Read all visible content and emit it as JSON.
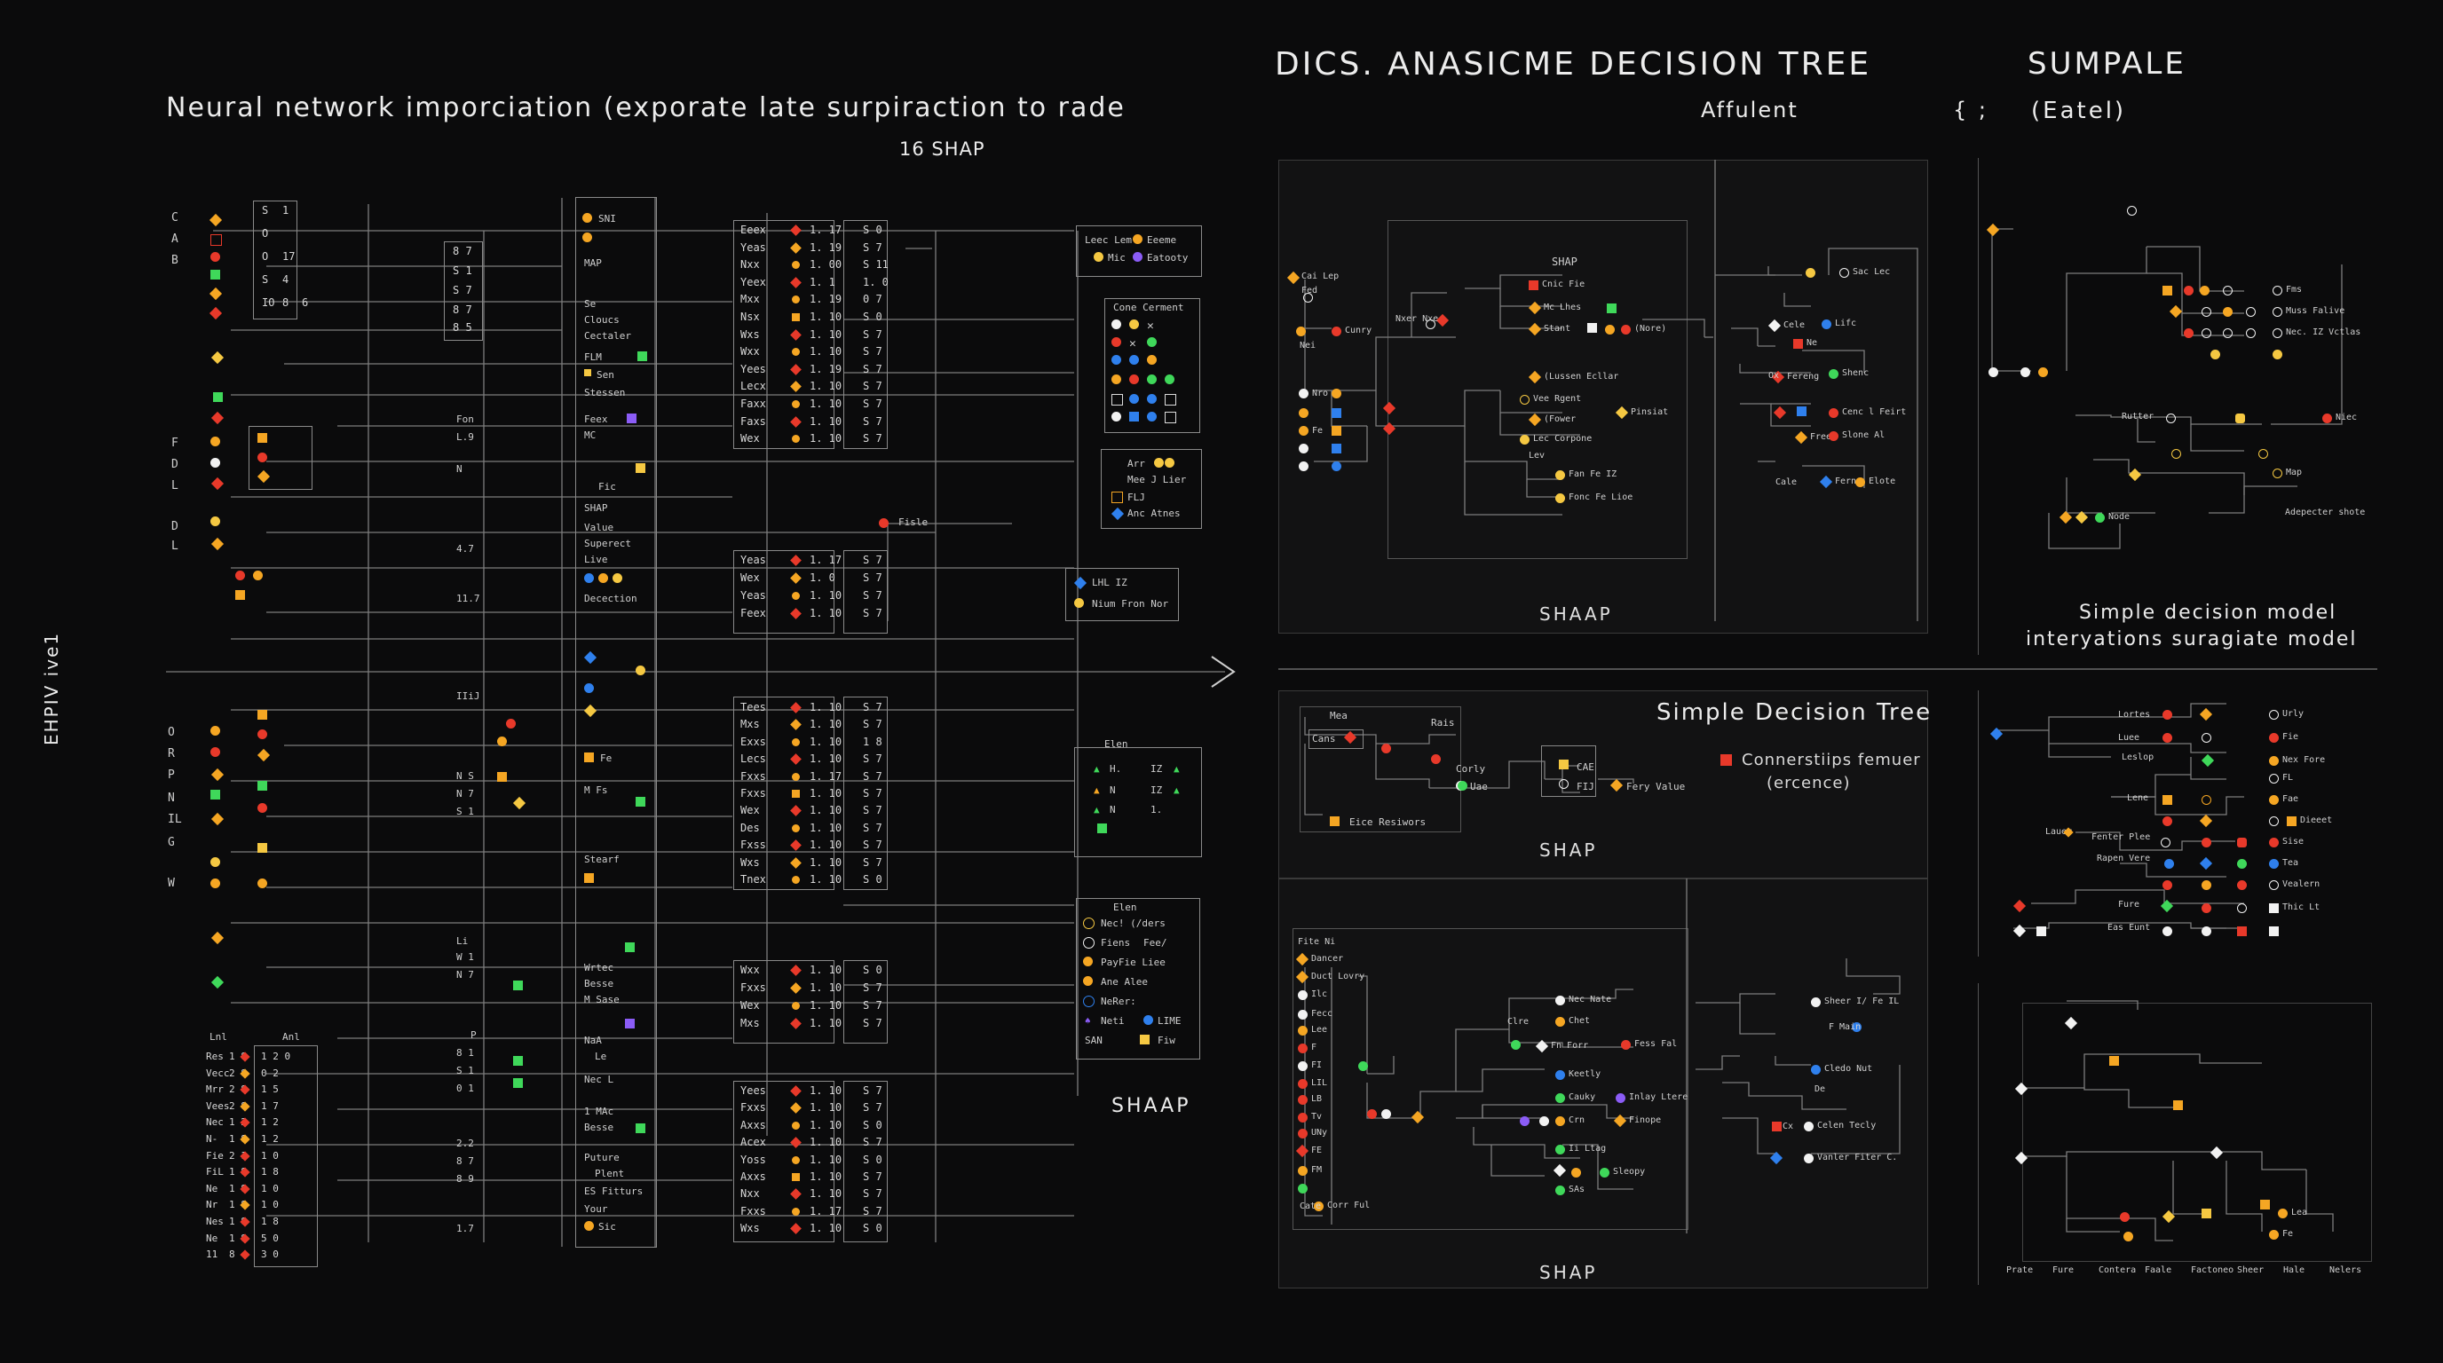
{
  "left": {
    "title": "Neural network imporciation (exporate late surpiraction to rade",
    "subtitle": "16 SHAP",
    "side_label": "EHPIV ive1",
    "bottom_label": "SHAAP",
    "row_letters_a": [
      "C",
      "A",
      "B"
    ],
    "row_letters_b": [
      "F",
      "D",
      "L",
      "D",
      "L"
    ],
    "row_letters_c": [
      "O",
      "R",
      "P",
      "N",
      "IL",
      "G",
      "W"
    ],
    "side_cells_a": [
      "S",
      "O",
      "O",
      "S",
      "IO"
    ],
    "side_cells_b": [
      "1",
      "17",
      "4",
      "8",
      "6"
    ],
    "mid_cells": [
      "8 7",
      "S 1",
      "S 7",
      "8 7",
      "8 5"
    ],
    "block_a_labels": [
      "SNI",
      "MAP",
      "Se",
      "Cloucs",
      "Cectaler",
      "FLM",
      "Sen",
      "Stessen",
      "Feex",
      "MC",
      "Fic",
      "SHAP",
      "Value",
      "Superect",
      "Live",
      "Decection"
    ],
    "block_b_labels": [
      "Fe",
      "M Fs",
      "Stearf",
      "Wrtec",
      "Besse",
      "M Sase",
      "NaA",
      "Le",
      "Nec L",
      "1 MAc",
      "Besse",
      "Puture",
      "Plent",
      "ES Fitturs",
      "Your",
      "Sic"
    ],
    "table1": [
      {
        "k": "Eeex",
        "v": "1. 17",
        "s": "S 0"
      },
      {
        "k": "Yeas",
        "v": "1. 19",
        "s": "S 7"
      },
      {
        "k": "Nxx",
        "v": "1. 00",
        "s": "S 11"
      },
      {
        "k": "Yeex",
        "v": "1. 1",
        "s": "1. 0"
      },
      {
        "k": "Mxx",
        "v": "1. 19",
        "s": "0 7"
      },
      {
        "k": "Nsx",
        "v": "1. 10",
        "s": "S 0"
      },
      {
        "k": "Wxs",
        "v": "1. 10",
        "s": "S 7"
      },
      {
        "k": "Wxx",
        "v": "1. 10",
        "s": "S 7"
      },
      {
        "k": "Yees",
        "v": "1. 19",
        "s": "S 7"
      },
      {
        "k": "Lecx",
        "v": "1. 10",
        "s": "S 7"
      },
      {
        "k": "Faxx",
        "v": "1. 10",
        "s": "S 7"
      },
      {
        "k": "Faxs",
        "v": "1. 10",
        "s": "S 7"
      },
      {
        "k": "Wex",
        "v": "1. 10",
        "s": "S 7"
      }
    ],
    "table2": [
      {
        "k": "Yeas",
        "v": "1. 17",
        "s": "S 7"
      },
      {
        "k": "Wex",
        "v": "1. 0",
        "s": "S 7"
      },
      {
        "k": "Yeas",
        "v": "1. 10",
        "s": "S 7"
      },
      {
        "k": "Feex",
        "v": "1. 10",
        "s": "S 7"
      }
    ],
    "table3": [
      {
        "k": "Tees",
        "v": "1. 10",
        "s": "S 7"
      },
      {
        "k": "Mxs",
        "v": "1. 10",
        "s": "S 7"
      },
      {
        "k": "Exxs",
        "v": "1. 10",
        "s": "1 8"
      },
      {
        "k": "Lecs",
        "v": "1. 10",
        "s": "S 7"
      },
      {
        "k": "Fxxs",
        "v": "1. 17",
        "s": "S 7"
      },
      {
        "k": "Fxxs",
        "v": "1. 10",
        "s": "S 7"
      },
      {
        "k": "Wex",
        "v": "1. 10",
        "s": "S 7"
      },
      {
        "k": "Des",
        "v": "1. 10",
        "s": "S 7"
      },
      {
        "k": "Fxss",
        "v": "1. 10",
        "s": "S 7"
      },
      {
        "k": "Wxs",
        "v": "1. 10",
        "s": "S 7"
      },
      {
        "k": "Tnex",
        "v": "1. 10",
        "s": "S 0"
      }
    ],
    "table4": [
      {
        "k": "Wxx",
        "v": "1. 10",
        "s": "S 0"
      },
      {
        "k": "Fxxs",
        "v": "1. 10",
        "s": "S 7"
      },
      {
        "k": "Wex",
        "v": "1. 10",
        "s": "S 7"
      },
      {
        "k": "Mxs",
        "v": "1. 10",
        "s": "S 7"
      }
    ],
    "table5": [
      {
        "k": "Yees",
        "v": "1. 10",
        "s": "S 7"
      },
      {
        "k": "Fxxs",
        "v": "1. 10",
        "s": "S 7"
      },
      {
        "k": "Axxs",
        "v": "1. 10",
        "s": "S 0"
      },
      {
        "k": "Acex",
        "v": "1. 10",
        "s": "S 7"
      },
      {
        "k": "Yoss",
        "v": "1. 10",
        "s": "S 0"
      },
      {
        "k": "Axxs",
        "v": "1. 10",
        "s": "S 7"
      },
      {
        "k": "Nxx",
        "v": "1. 10",
        "s": "S 7"
      },
      {
        "k": "Fxxs",
        "v": "1. 17",
        "s": "S 7"
      },
      {
        "k": "Wxs",
        "v": "1. 10",
        "s": "S 0"
      }
    ],
    "bottom_rows": [
      {
        "k": "Res",
        "a": "1 8",
        "b": "1 2 0"
      },
      {
        "k": "Vecc",
        "a": "2 8",
        "b": "0 2"
      },
      {
        "k": "Mrr",
        "a": "2 8",
        "b": "1 5"
      },
      {
        "k": "Vees",
        "a": "2 8",
        "b": "1 7"
      },
      {
        "k": "Nec",
        "a": "1 2",
        "b": "1 2"
      },
      {
        "k": "N-",
        "a": "1 8",
        "b": "1 2"
      },
      {
        "k": "Fie",
        "a": "2 1",
        "b": "1 0"
      },
      {
        "k": "FiL",
        "a": "1 8",
        "b": "1 8"
      },
      {
        "k": "Ne",
        "a": "1 8",
        "b": "1 0"
      },
      {
        "k": "Nr",
        "a": "1 8",
        "b": "1 0"
      },
      {
        "k": "Nes",
        "a": "1 8",
        "b": "1 8"
      },
      {
        "k": "Ne",
        "a": "1 8",
        "b": "5 0"
      },
      {
        "k": "11",
        "a": "8",
        "b": "3 0"
      }
    ],
    "bottom_head": [
      "Lnl",
      "Anl"
    ],
    "legend1": [
      "Leec Lem",
      "Eeeme",
      "Mic",
      "Eatooty"
    ],
    "legend2_title": "Cone Cerment",
    "legend3": [
      "Arr",
      "Mee J Lier",
      "FLJ",
      "Anc Atnes"
    ],
    "legend4": [
      "LHL IZ",
      "Nium Fron Nor"
    ],
    "legend5": [
      "H.",
      "IZ",
      "N",
      "IZ",
      "N",
      "1."
    ],
    "legend5_title": "Elen",
    "legend6": [
      "Elen",
      "Nec! (/ders",
      "Fiens",
      "Fee/",
      "PayFie Liee",
      "Ane Alee",
      "NeRer:",
      "Neti",
      "LIME",
      "SAN",
      "Fiw"
    ],
    "misc": [
      "Fon",
      "L.9",
      "N",
      "4.7",
      "11.7",
      "Fisle",
      "Li",
      "W 1",
      "N 7",
      "2.2",
      "8 7",
      "8 9",
      "1.7",
      "P",
      "8 1",
      "S 1",
      "0 1",
      "IIiJ",
      "N S",
      "N 7",
      "S 1"
    ]
  },
  "tree_a": {
    "title": "DICS. ANASICME DECISION TREE",
    "subtitle": "Affulent",
    "footer": "SHAAP",
    "inner_title": "SHAP",
    "labels": [
      "Cai Lep",
      "Fed",
      "Nxer Nxe",
      "Cunry",
      "Nei",
      "Nro",
      "Fe",
      "Cnic Fie",
      "Mc Lhes",
      "Stant",
      "(Nore)",
      "(Lussen Ecllar",
      "Vee Rgent",
      "(Fower",
      "Pinsiat",
      "Lec Corpone",
      "Lev",
      "Fan Fe IZ",
      "Fonc Fe Lioe",
      "Sac Lec",
      "Cele",
      "Lifc",
      "Ne",
      "Ox",
      "Fereng",
      "Shenc",
      "Cenc l Feirt",
      "Free",
      "Slone Al",
      "Cale",
      "Fern",
      "Elote"
    ]
  },
  "sample": {
    "title": "SUMPALE",
    "subtitle": "(Eatel)",
    "brace": "{ ;",
    "caption1": "Simple decision model",
    "caption2": "interyations suragiate model",
    "labels": [
      "Fms",
      "Muss Falive",
      "Nec. IZ Vctlas",
      "Rutter",
      "Niec",
      "Map",
      "Node",
      "Adepecter shote"
    ]
  },
  "tree_b": {
    "title": "Simple Decision Tree",
    "legend_line1": "Connerstiips femuer",
    "legend_line2": "(ercence)",
    "footer": "SHAP",
    "labels": [
      "Mea",
      "Cans",
      "Rais",
      "Corly",
      "Uae",
      "CAE",
      "FIJ",
      "Fery Value",
      "Eice Resiwors"
    ]
  },
  "tree_c": {
    "footer": "SHAP",
    "labels": [
      "Fite Ni",
      "Dancer",
      "Duct Lovry",
      "Ilc",
      "Fecc",
      "Lee",
      "F",
      "FI",
      "LIL",
      "LB",
      "Tv",
      "UNy",
      "FE",
      "FM",
      "Cate",
      "Corr Ful",
      "Nec Nate",
      "Chet",
      "Clre",
      "Fn Forr",
      "Fess Fal",
      "Keetly",
      "Cauky",
      "Inlay Ltere",
      "Crn",
      "Finope",
      "Ii Ltag",
      "Sleopy",
      "SAs",
      "Sheer I/ Fe IL",
      "F Main",
      "Cledo Nut",
      "De",
      "Cx",
      "Celen Tecly",
      "Vanler Fiter C."
    ]
  },
  "tree_d": {
    "labels": [
      "Urly",
      "Fie",
      "Nex Fore",
      "FL",
      "Fae",
      "Dieeet",
      "Sise",
      "Tea",
      "Vealern",
      "Thic Lt",
      "Lortes",
      "Luee",
      "Leslop",
      "Lene",
      "Lauer",
      "Fenter Plee",
      "Rapen Vere",
      "Fure",
      "Eas Eunt"
    ]
  },
  "tree_e": {
    "axis_labels": [
      "Prate",
      "Fure",
      "Contera",
      "Faale",
      "Factoneo",
      "Sheer",
      "Hale",
      "Nelers"
    ],
    "labels": [
      "Lea",
      "Fe"
    ]
  },
  "colors": {
    "orange": "#f5a623",
    "red": "#e8392a",
    "green": "#3fd85a",
    "blue": "#2f80ed",
    "yellow": "#f5c842",
    "purple": "#8b5cf6",
    "white": "#f2f2f2"
  }
}
